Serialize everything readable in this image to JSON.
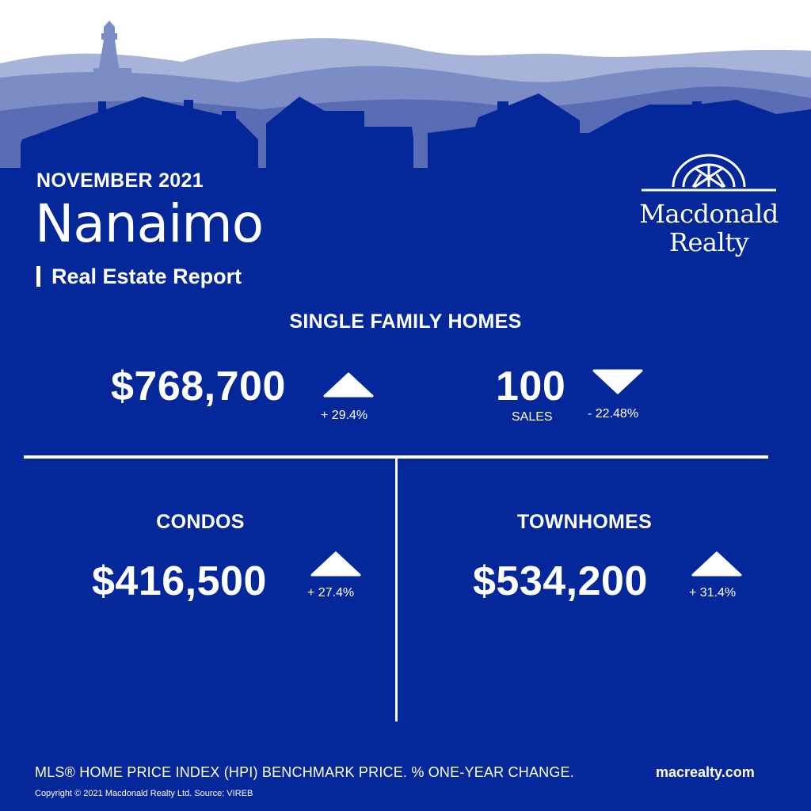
{
  "header": {
    "period": "NOVEMBER 2021",
    "city": "Nanaimo",
    "report_label": "Real Estate Report"
  },
  "brand": {
    "name_line1": "Macdonald",
    "name_line2": "Realty"
  },
  "single_family": {
    "title": "SINGLE FAMILY HOMES",
    "price": "$768,700",
    "price_change": "+ 29.4%",
    "price_trend": "up",
    "sales": "100",
    "sales_label": "SALES",
    "sales_change": "- 22.48%",
    "sales_trend": "down"
  },
  "condos": {
    "title": "CONDOS",
    "price": "$416,500",
    "price_change": "+ 27.4%",
    "price_trend": "up"
  },
  "townhomes": {
    "title": "TOWNHOMES",
    "price": "$534,200",
    "price_change": "+ 31.4%",
    "price_trend": "up"
  },
  "footer": {
    "note": "MLS® HOME PRICE INDEX (HPI) BENCHMARK PRICE.  % ONE-YEAR CHANGE.",
    "copyright": "Copyright © 2021 Macdonald Realty Ltd.  Source: VIREB",
    "website": "macrealty.com"
  },
  "colors": {
    "background": "#04289a",
    "sky": "#ffffff",
    "far_hills": "#a7b3d8",
    "mid_hills": "#7c8cc4",
    "near_hills": "#5a6db4",
    "houses": "#04289a",
    "text": "#ffffff"
  },
  "icons": [
    "lighthouse-icon",
    "house-silhouette",
    "logo-wheel-icon",
    "triangle-up-icon",
    "triangle-down-icon"
  ]
}
